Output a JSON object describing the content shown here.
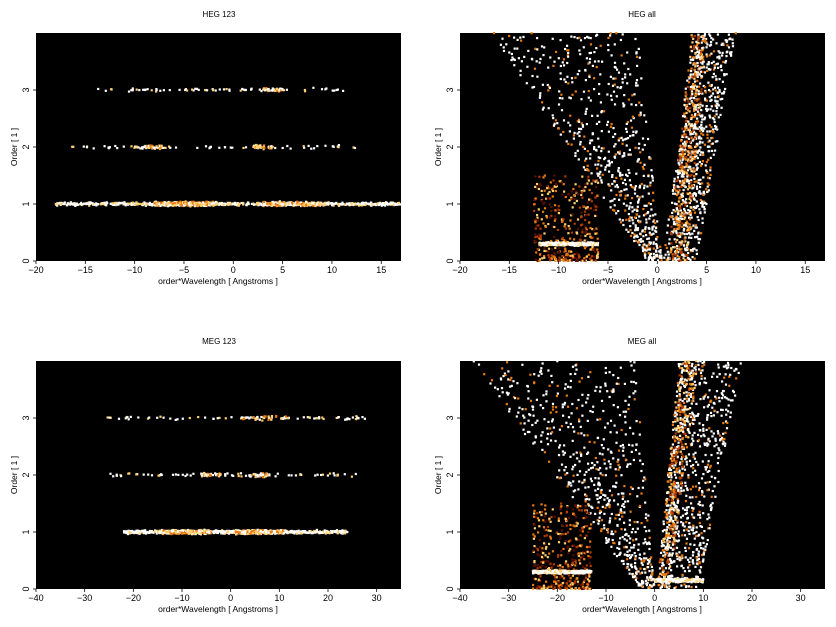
{
  "chart_data": [
    {
      "type": "heatmap",
      "title": "HEG 123",
      "xlabel": "order*Wavelength [ Angstroms ]",
      "ylabel": "Order [ 1 ]",
      "xlim": [
        -20,
        17
      ],
      "ylim": [
        0,
        4
      ],
      "xticks": [
        -20,
        -15,
        -10,
        -5,
        0,
        5,
        10,
        15
      ],
      "yticks": [
        0,
        1,
        2,
        3
      ],
      "background": "#000000",
      "colormap": [
        "#000000",
        "#5a0f00",
        "#b03a00",
        "#e87a10",
        "#ffd070",
        "#ffffff"
      ],
      "features": [
        {
          "kind": "band",
          "order": 1,
          "x_range": [
            -18,
            17
          ],
          "density": "medium",
          "peaks": [
            [
              -8,
              -2
            ],
            [
              3,
              9
            ]
          ]
        },
        {
          "kind": "band",
          "order": 2,
          "x_range": [
            -17,
            13
          ],
          "density": "low",
          "peaks": [
            [
              -9,
              -7
            ],
            [
              2,
              4
            ]
          ]
        },
        {
          "kind": "band",
          "order": 3,
          "x_range": [
            -14,
            12
          ],
          "density": "low",
          "peaks": [
            [
              3,
              5
            ]
          ]
        }
      ]
    },
    {
      "type": "heatmap",
      "title": "HEG all",
      "xlabel": "order*Wavelength [ Angstroms ]",
      "ylabel": "Order [ 1 ]",
      "xlim": [
        -20,
        17
      ],
      "ylim": [
        0,
        4
      ],
      "xticks": [
        -20,
        -15,
        -10,
        -5,
        0,
        5,
        10,
        15
      ],
      "yticks": [
        0,
        1,
        2,
        3
      ],
      "background": "#000000",
      "colormap": [
        "#000000",
        "#5a0f00",
        "#b03a00",
        "#e87a10",
        "#ffd070",
        "#ffffff"
      ],
      "features": [
        {
          "kind": "wedge",
          "x_at_order0": [
            -1,
            0.5
          ],
          "x_at_order4": [
            -17,
            -2
          ],
          "density": "medium"
        },
        {
          "kind": "wedge",
          "x_at_order0": [
            0.5,
            4
          ],
          "x_at_order4": [
            4,
            8
          ],
          "density": "medium"
        },
        {
          "kind": "hotwedge",
          "x_at_order0": [
            1,
            3
          ],
          "x_at_order4": [
            3.5,
            5
          ],
          "density": "high"
        },
        {
          "kind": "patch",
          "x_range": [
            -12.5,
            -6
          ],
          "y_range": [
            0,
            1.5
          ],
          "density": "high"
        },
        {
          "kind": "band",
          "order": 0.3,
          "x_range": [
            -12,
            -6
          ],
          "density": "very high"
        }
      ]
    },
    {
      "type": "heatmap",
      "title": "MEG 123",
      "xlabel": "order*Wavelength [ Angstroms ]",
      "ylabel": "Order [ 1 ]",
      "xlim": [
        -40,
        35
      ],
      "ylim": [
        0,
        4
      ],
      "xticks": [
        -40,
        -30,
        -20,
        -10,
        0,
        10,
        20,
        30
      ],
      "yticks": [
        0,
        1,
        2,
        3
      ],
      "background": "#000000",
      "colormap": [
        "#000000",
        "#5a0f00",
        "#b03a00",
        "#e87a10",
        "#ffd070",
        "#ffffff"
      ],
      "features": [
        {
          "kind": "band",
          "order": 1,
          "x_range": [
            -22,
            24
          ],
          "density": "medium",
          "peaks": [
            [
              -14,
              -4
            ],
            [
              1,
              11
            ]
          ]
        },
        {
          "kind": "band",
          "order": 2,
          "x_range": [
            -25,
            26
          ],
          "density": "low",
          "peaks": [
            [
              -6,
              -2
            ],
            [
              4,
              8
            ]
          ]
        },
        {
          "kind": "band",
          "order": 3,
          "x_range": [
            -26,
            28
          ],
          "density": "low",
          "peaks": [
            [
              2,
              12
            ]
          ]
        }
      ]
    },
    {
      "type": "heatmap",
      "title": "MEG all",
      "xlabel": "order*Wavelength [ Angstroms ]",
      "ylabel": "Order [ 1 ]",
      "xlim": [
        -40,
        35
      ],
      "ylim": [
        0,
        4
      ],
      "xticks": [
        -40,
        -30,
        -20,
        -10,
        0,
        10,
        20,
        30
      ],
      "yticks": [
        0,
        1,
        2,
        3
      ],
      "background": "#000000",
      "colormap": [
        "#000000",
        "#5a0f00",
        "#b03a00",
        "#e87a10",
        "#ffd070",
        "#ffffff"
      ],
      "features": [
        {
          "kind": "wedge",
          "x_at_order0": [
            -3,
            0
          ],
          "x_at_order4": [
            -38,
            -4
          ],
          "density": "medium"
        },
        {
          "kind": "wedge",
          "x_at_order0": [
            0.5,
            9
          ],
          "x_at_order4": [
            5,
            18
          ],
          "density": "medium"
        },
        {
          "kind": "hotwedge",
          "x_at_order0": [
            0.5,
            3
          ],
          "x_at_order4": [
            5,
            9
          ],
          "density": "high"
        },
        {
          "kind": "patch",
          "x_range": [
            -25,
            -13
          ],
          "y_range": [
            0,
            1.5
          ],
          "density": "high"
        },
        {
          "kind": "band",
          "order": 0.3,
          "x_range": [
            -25,
            -13
          ],
          "density": "very high"
        },
        {
          "kind": "band",
          "order": 0.15,
          "x_range": [
            0,
            10
          ],
          "density": "high"
        }
      ]
    }
  ]
}
